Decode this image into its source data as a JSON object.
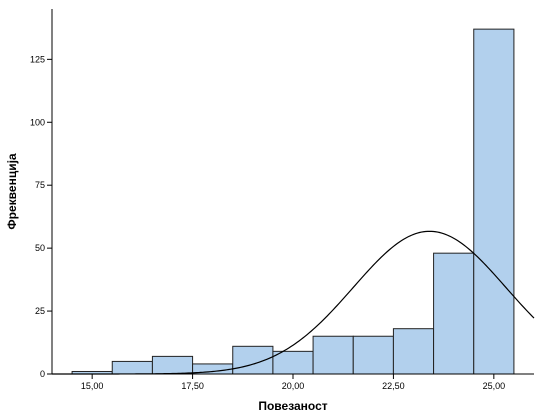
{
  "chart_data": {
    "type": "bar",
    "title": "",
    "xlabel": "Повезаност",
    "ylabel": "Фреквенција",
    "bin_edges": [
      14.5,
      15.5,
      16.5,
      17.5,
      18.5,
      19.5,
      20.5,
      21.5,
      22.5,
      23.5,
      24.5,
      25.5
    ],
    "values": [
      1,
      5,
      7,
      4,
      11,
      9,
      15,
      15,
      18,
      48,
      137
    ],
    "xlim": [
      14.0,
      26.0
    ],
    "ylim": [
      0,
      145
    ],
    "xticks": [
      15.0,
      17.5,
      20.0,
      22.5,
      25.0
    ],
    "xtick_labels": [
      "15,00",
      "17,50",
      "20,00",
      "22,50",
      "25,00"
    ],
    "yticks": [
      0,
      25,
      50,
      75,
      100,
      125
    ],
    "ytick_labels": [
      "0",
      "25",
      "50",
      "75",
      "100",
      "125"
    ],
    "normal_curve": {
      "mean": 23.4,
      "sd": 1.9,
      "n": 270,
      "bin_width": 1.0
    },
    "grid": false,
    "colors": {
      "bar_fill": "#b2d0ed",
      "bar_stroke": "#222222",
      "curve": "#000000",
      "axis": "#000000",
      "plot_background": "#ffffff",
      "page_background": "#ffffff"
    }
  }
}
